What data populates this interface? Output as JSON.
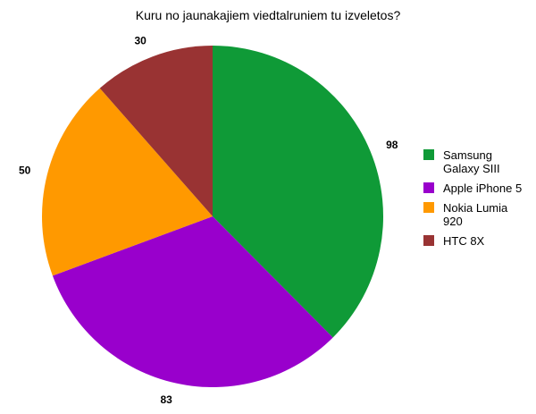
{
  "chart_data": {
    "type": "pie",
    "title": "Kuru no jaunakajiem viedtalruniem tu izveletos?",
    "categories": [
      "Samsung Galaxy SIII",
      "Apple iPhone 5",
      "Nokia Lumia 920",
      "HTC 8X"
    ],
    "values": [
      98,
      83,
      50,
      30
    ],
    "value_labels": [
      "98",
      "83",
      "50",
      "30"
    ],
    "colors": [
      "#0f9a37",
      "#9900cc",
      "#ff9900",
      "#993333"
    ],
    "start_angle": "12 o'clock",
    "direction": "clockwise",
    "legend": {
      "placement": "right"
    }
  }
}
